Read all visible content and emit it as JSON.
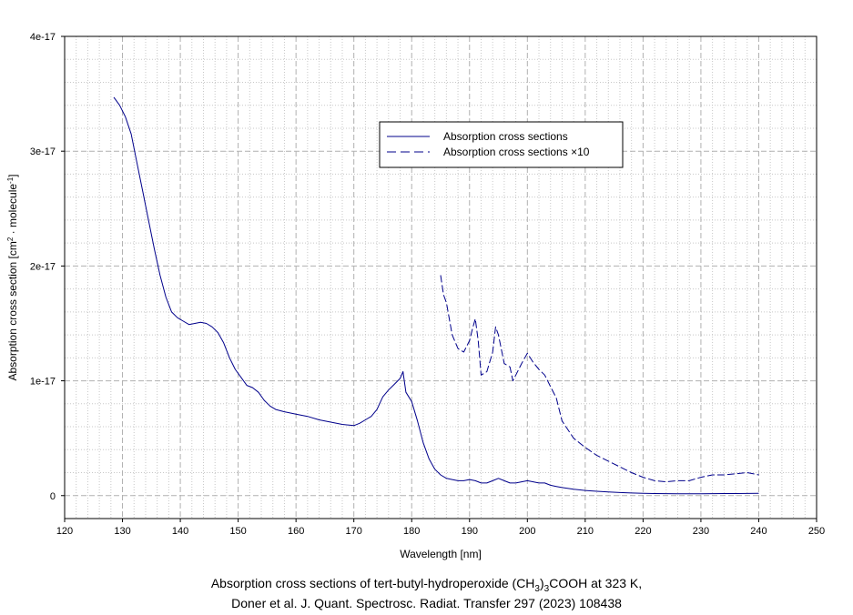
{
  "chart_data": {
    "type": "line",
    "xlabel": "Wavelength [nm]",
    "ylabel": "Absorption cross section [cm2 · molecule-1]",
    "ylabel_parts": {
      "pre": "Absorption cross section [cm",
      "sup1": "2",
      "mid": " · molecule",
      "sup2": "-1",
      "post": "]"
    },
    "xlim": [
      120,
      250
    ],
    "ylim": [
      -2e-18,
      4e-17
    ],
    "x_ticks": [
      120,
      130,
      140,
      150,
      160,
      170,
      180,
      190,
      200,
      210,
      220,
      230,
      240,
      250
    ],
    "y_ticks": [
      {
        "value": 0,
        "label": "0"
      },
      {
        "value": 1e-17,
        "label": "1e-17"
      },
      {
        "value": 2e-17,
        "label": "2e-17"
      },
      {
        "value": 3e-17,
        "label": "3e-17"
      },
      {
        "value": 4e-17,
        "label": "4e-17"
      }
    ],
    "grid": true,
    "legend_position": "upper-right",
    "series": [
      {
        "name": "Absorption cross sections",
        "style": "solid",
        "color": "#00008b",
        "x": [
          128.5,
          129.5,
          130.5,
          131.5,
          132.5,
          133.5,
          134.5,
          135.5,
          136.5,
          137.5,
          138.5,
          139.5,
          140.5,
          141.5,
          142.5,
          143.5,
          144.5,
          145.5,
          146.5,
          147.5,
          148.5,
          149.5,
          150.5,
          151.5,
          152.5,
          153.5,
          154.5,
          155.5,
          156.5,
          158,
          160,
          162,
          164,
          166,
          168,
          170,
          171,
          172,
          173,
          174,
          175,
          176,
          177,
          178,
          178.5,
          179,
          180,
          181,
          182,
          183,
          184,
          185,
          186,
          187,
          188,
          189,
          190,
          191,
          192,
          193,
          194,
          195,
          196,
          197,
          198,
          199,
          200,
          201,
          202,
          203,
          204,
          205,
          206,
          208,
          210,
          212,
          214,
          216,
          218,
          220,
          222,
          224,
          226,
          228,
          230,
          232,
          234,
          236,
          238,
          240
        ],
        "y": [
          3.47e-17,
          3.4e-17,
          3.3e-17,
          3.15e-17,
          2.9e-17,
          2.65e-17,
          2.4e-17,
          2.15e-17,
          1.92e-17,
          1.73e-17,
          1.6e-17,
          1.55e-17,
          1.52e-17,
          1.49e-17,
          1.5e-17,
          1.51e-17,
          1.5e-17,
          1.47e-17,
          1.42e-17,
          1.33e-17,
          1.2e-17,
          1.1e-17,
          1.03e-17,
          9.6e-18,
          9.4e-18,
          9e-18,
          8.3e-18,
          7.8e-18,
          7.5e-18,
          7.3e-18,
          7.1e-18,
          6.9e-18,
          6.6e-18,
          6.4e-18,
          6.2e-18,
          6.1e-18,
          6.3e-18,
          6.6e-18,
          6.9e-18,
          7.5e-18,
          8.6e-18,
          9.2e-18,
          9.7e-18,
          1.02e-17,
          1.08e-17,
          9e-18,
          8.2e-18,
          6.5e-18,
          4.6e-18,
          3.2e-18,
          2.3e-18,
          1.8e-18,
          1.5e-18,
          1.4e-18,
          1.3e-18,
          1.3e-18,
          1.4e-18,
          1.3e-18,
          1.1e-18,
          1.1e-18,
          1.3e-18,
          1.5e-18,
          1.3e-18,
          1.1e-18,
          1.1e-18,
          1.2e-18,
          1.3e-18,
          1.2e-18,
          1.1e-18,
          1.1e-18,
          9e-19,
          8e-19,
          7e-19,
          5.5e-19,
          4.5e-19,
          3.8e-19,
          3.2e-19,
          2.7e-19,
          2.3e-19,
          2e-19,
          1.8e-19,
          1.7e-19,
          1.6e-19,
          1.6e-19,
          1.6e-19,
          1.7e-19,
          1.8e-19,
          1.8e-19,
          1.9e-19,
          2e-19
        ]
      },
      {
        "name": "Absorption cross sections ×10",
        "style": "dashed",
        "color": "#00008b",
        "x": [
          185,
          185.5,
          186,
          187,
          188,
          189,
          190,
          190.5,
          191,
          191.5,
          192,
          193,
          194,
          194.5,
          195,
          196,
          197,
          197.5,
          198,
          199,
          200,
          201,
          202,
          203,
          204,
          205,
          206,
          208,
          210,
          212,
          214,
          216,
          218,
          220,
          222,
          224,
          226,
          228,
          230,
          232,
          234,
          236,
          238,
          240
        ],
        "y": [
          1.92e-17,
          1.75e-17,
          1.68e-17,
          1.4e-17,
          1.28e-17,
          1.25e-17,
          1.35e-17,
          1.45e-17,
          1.54e-17,
          1.35e-17,
          1.05e-17,
          1.08e-17,
          1.25e-17,
          1.47e-17,
          1.4e-17,
          1.15e-17,
          1.12e-17,
          1e-17,
          1.05e-17,
          1.15e-17,
          1.24e-17,
          1.16e-17,
          1.1e-17,
          1.05e-17,
          9.5e-18,
          8.5e-18,
          6.5e-18,
          5e-18,
          4.2e-18,
          3.5e-18,
          3e-18,
          2.5e-18,
          2e-18,
          1.6e-18,
          1.3e-18,
          1.2e-18,
          1.3e-18,
          1.3e-18,
          1.6e-18,
          1.8e-18,
          1.8e-18,
          1.9e-18,
          2e-18,
          1.8e-18
        ]
      }
    ]
  },
  "caption": {
    "line1_pre": "Absorption cross sections of tert-butyl-hydroperoxide (CH",
    "line1_sub1": "3",
    "line1_mid": ")",
    "line1_sub2": "3",
    "line1_post": "COOH at 323 K,",
    "line2": "Doner et al. J. Quant. Spectrosc. Radiat. Transfer 297 (2023) 108438"
  }
}
